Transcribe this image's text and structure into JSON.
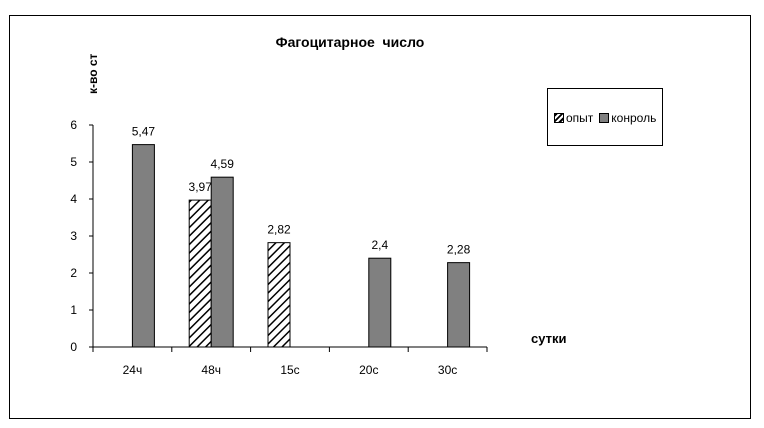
{
  "chart_data": {
    "type": "bar",
    "title": "Фагоцитарное  число",
    "ylabel": "к-во ст",
    "xlabel": "сутки",
    "categories": [
      "24ч",
      "48ч",
      "15с",
      "20с",
      "30с"
    ],
    "ylim": [
      0,
      6
    ],
    "yticks": [
      0,
      1,
      2,
      3,
      4,
      5,
      6
    ],
    "grid": false,
    "legend_position": "top-right",
    "series": [
      {
        "name": "опыт",
        "pattern": "hatched",
        "color": "#000000",
        "values": [
          null,
          3.97,
          2.82,
          null,
          null
        ],
        "labels": [
          "",
          "3,97",
          "2,82",
          "",
          ""
        ]
      },
      {
        "name": "конроль",
        "pattern": "solid",
        "color": "#808080",
        "values": [
          5.47,
          4.59,
          null,
          2.4,
          2.28
        ],
        "labels": [
          "5,47",
          "4,59",
          "",
          "2,4",
          "2,28"
        ]
      }
    ]
  }
}
